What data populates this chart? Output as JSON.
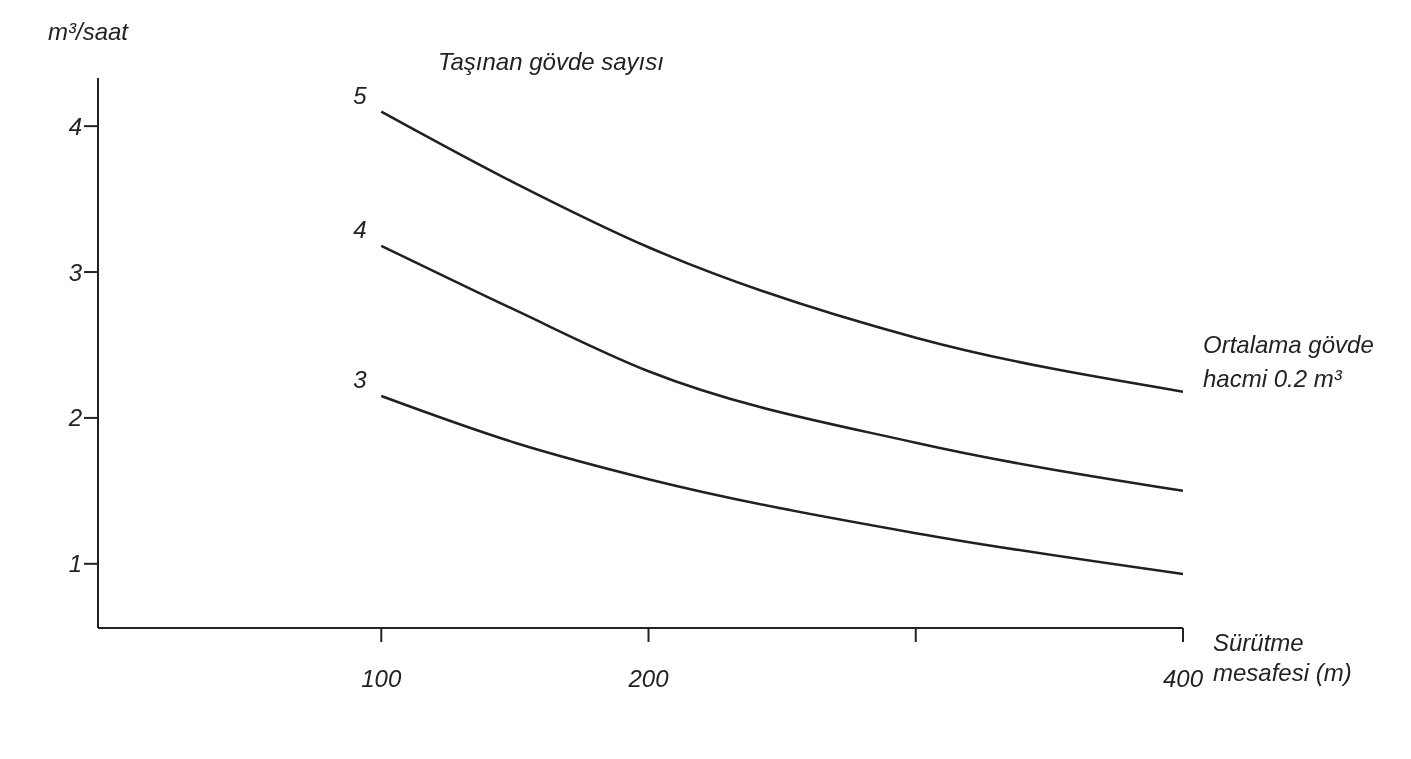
{
  "chart_data": {
    "type": "line",
    "title": "Taşınan gövde sayısı",
    "xlabel": "Sürütme mesafesi (m)",
    "ylabel": "m³/saat",
    "annotations": [
      "Ortalama gövde hacmi 0.2 m³"
    ],
    "x": [
      100,
      150,
      200,
      300,
      400
    ],
    "series": [
      {
        "name": "5",
        "color": "#231f20",
        "values": [
          4.1,
          3.61,
          3.17,
          2.55,
          2.18
        ]
      },
      {
        "name": "4",
        "color": "#231f20",
        "values": [
          3.18,
          2.74,
          2.32,
          1.83,
          1.5
        ]
      },
      {
        "name": "3",
        "color": "#231f20",
        "values": [
          2.15,
          1.83,
          1.58,
          1.21,
          0.93
        ]
      }
    ],
    "xlim": [
      -6,
      400
    ],
    "xticks": [
      100,
      200,
      {
        "value": 300,
        "label": null
      },
      400
    ],
    "ylim": [
      0.56,
      4.33
    ],
    "yticks": [
      1,
      2,
      3,
      4
    ],
    "grid": false,
    "legend": false,
    "marker": "none",
    "line_style": "solid"
  }
}
